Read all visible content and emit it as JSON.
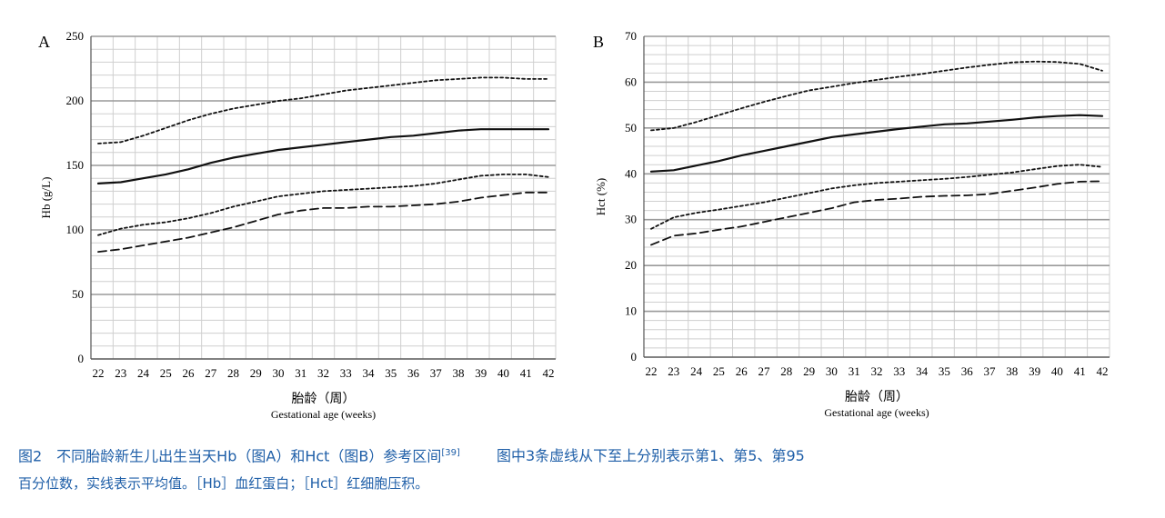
{
  "chart_data": [
    {
      "type": "line",
      "panel_label": "A",
      "ylabel": "Hb (g/L)",
      "xlabel_cn": "胎龄（周）",
      "xlabel_en": "Gestational age (weeks)",
      "x": [
        22,
        23,
        24,
        25,
        26,
        27,
        28,
        29,
        30,
        31,
        32,
        33,
        34,
        35,
        36,
        37,
        38,
        39,
        40,
        41,
        42
      ],
      "x_ticks": [
        "22",
        "23",
        "24",
        "25",
        "26",
        "27",
        "28",
        "29",
        "30",
        "31",
        "32",
        "33",
        "34",
        "35",
        "36",
        "37",
        "38",
        "39",
        "40",
        "41",
        "42"
      ],
      "y_ticks": [
        "0",
        "50",
        "100",
        "150",
        "200",
        "250"
      ],
      "ylim": [
        0,
        250
      ],
      "grid": true,
      "series": [
        {
          "style": "dotted",
          "values": [
            167,
            168,
            173,
            179,
            185,
            190,
            194,
            197,
            200,
            202,
            205,
            208,
            210,
            212,
            214,
            216,
            217,
            218,
            218,
            217,
            217
          ]
        },
        {
          "style": "solid",
          "values": [
            136,
            137,
            140,
            143,
            147,
            152,
            156,
            159,
            162,
            164,
            166,
            168,
            170,
            172,
            173,
            175,
            177,
            178,
            178,
            178,
            178
          ]
        },
        {
          "style": "dotted",
          "values": [
            96,
            101,
            104,
            106,
            109,
            113,
            118,
            122,
            126,
            128,
            130,
            131,
            132,
            133,
            134,
            136,
            139,
            142,
            143,
            143,
            141
          ]
        },
        {
          "style": "dashed",
          "values": [
            83,
            85,
            88,
            91,
            94,
            98,
            102,
            107,
            112,
            115,
            117,
            117,
            118,
            118,
            119,
            120,
            122,
            125,
            127,
            129,
            129
          ]
        }
      ]
    },
    {
      "type": "line",
      "panel_label": "B",
      "ylabel": "Hct (%)",
      "xlabel_cn": "胎龄（周）",
      "xlabel_en": "Gestational age (weeks)",
      "x": [
        22,
        23,
        24,
        25,
        26,
        27,
        28,
        29,
        30,
        31,
        32,
        33,
        34,
        35,
        36,
        37,
        38,
        39,
        40,
        41,
        42
      ],
      "x_ticks": [
        "22",
        "23",
        "24",
        "25",
        "26",
        "27",
        "28",
        "29",
        "30",
        "31",
        "32",
        "33",
        "34",
        "35",
        "36",
        "37",
        "38",
        "39",
        "40",
        "41",
        "42"
      ],
      "y_ticks": [
        "0",
        "10",
        "20",
        "30",
        "40",
        "50",
        "60",
        "70"
      ],
      "ylim": [
        0,
        70
      ],
      "grid": true,
      "series": [
        {
          "style": "dotted",
          "values": [
            49.5,
            50.0,
            51.3,
            52.8,
            54.3,
            55.7,
            57.0,
            58.2,
            59.0,
            59.8,
            60.5,
            61.2,
            61.8,
            62.5,
            63.2,
            63.8,
            64.3,
            64.5,
            64.4,
            64.0,
            62.5
          ]
        },
        {
          "style": "solid",
          "values": [
            40.5,
            40.8,
            41.8,
            42.8,
            44.0,
            45.0,
            46.0,
            47.0,
            48.0,
            48.6,
            49.2,
            49.8,
            50.3,
            50.8,
            51.0,
            51.4,
            51.8,
            52.3,
            52.6,
            52.8,
            52.6
          ]
        },
        {
          "style": "dotted",
          "values": [
            28.0,
            30.5,
            31.5,
            32.2,
            33.0,
            33.8,
            34.8,
            35.8,
            36.8,
            37.5,
            38.0,
            38.3,
            38.6,
            38.9,
            39.3,
            39.8,
            40.3,
            41.0,
            41.7,
            42.0,
            41.5
          ]
        },
        {
          "style": "dashed",
          "values": [
            24.5,
            26.5,
            27.0,
            27.8,
            28.5,
            29.5,
            30.5,
            31.5,
            32.5,
            33.8,
            34.3,
            34.6,
            35.0,
            35.2,
            35.3,
            35.6,
            36.3,
            37.0,
            37.8,
            38.3,
            38.4
          ]
        }
      ]
    }
  ],
  "caption": {
    "title": "图2　不同胎龄新生儿出生当天Hb（图A）和Hct（图B）参考区间",
    "ref": "[39]",
    "note": "图中3条虚线从下至上分别表示第1、第5、第95",
    "line2": "百分位数，实线表示平均值。［Hb］血红蛋白；［Hct］红细胞压积。"
  },
  "colors": {
    "line": "#111111",
    "grid_major": "#9a9a9a",
    "grid_minor": "#cfcfcf",
    "caption": "#1f5fa8"
  }
}
